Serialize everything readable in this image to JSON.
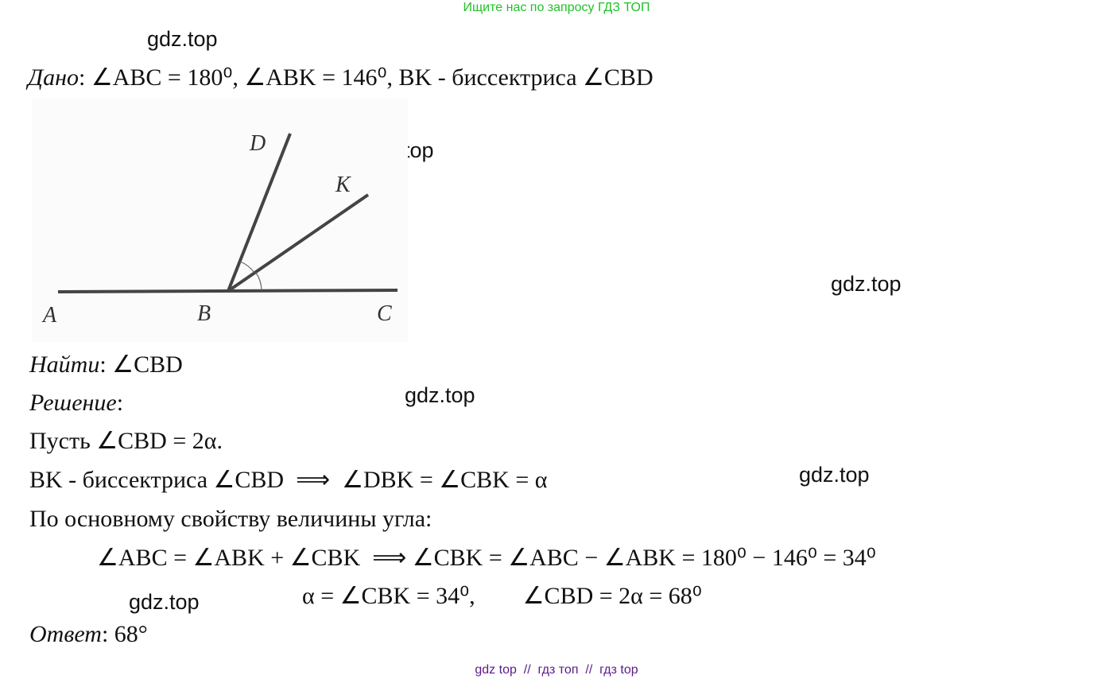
{
  "banner": "Ищите нас по запросу ГДЗ ТОП",
  "watermarks": [
    "gdz.top",
    "gdz.top",
    "gdz.top",
    "gdz.top",
    "gdz.top",
    "gdz.top"
  ],
  "given": {
    "label": "Дано",
    "text": ": ∠ABC = 180⁰, ∠ABK = 146⁰, BK - биссектриса ∠CBD"
  },
  "figure": {
    "labels": [
      "D",
      "K",
      "A",
      "B",
      "C"
    ]
  },
  "find": {
    "label": "Найти",
    "text": ": ∠CBD"
  },
  "solution": {
    "label": "Решение",
    "text": ":"
  },
  "lines": [
    "Пусть ∠CBD = 2α.",
    "BK - биссектриса ∠CBD  ⟹  ∠DBK = ∠CBK = α",
    "По основному свойству величины угла:",
    "∠ABC = ∠ABK + ∠CBK  ⟹ ∠CBK = ∠ABC − ∠ABK = 180⁰ − 146⁰ = 34⁰",
    "α = ∠CBK = 34⁰,        ∠CBD = 2α = 68⁰"
  ],
  "answer": {
    "label": "Ответ",
    "text": ": 68°"
  },
  "footer": "gdz top  //  гдз топ  //  гдз top"
}
